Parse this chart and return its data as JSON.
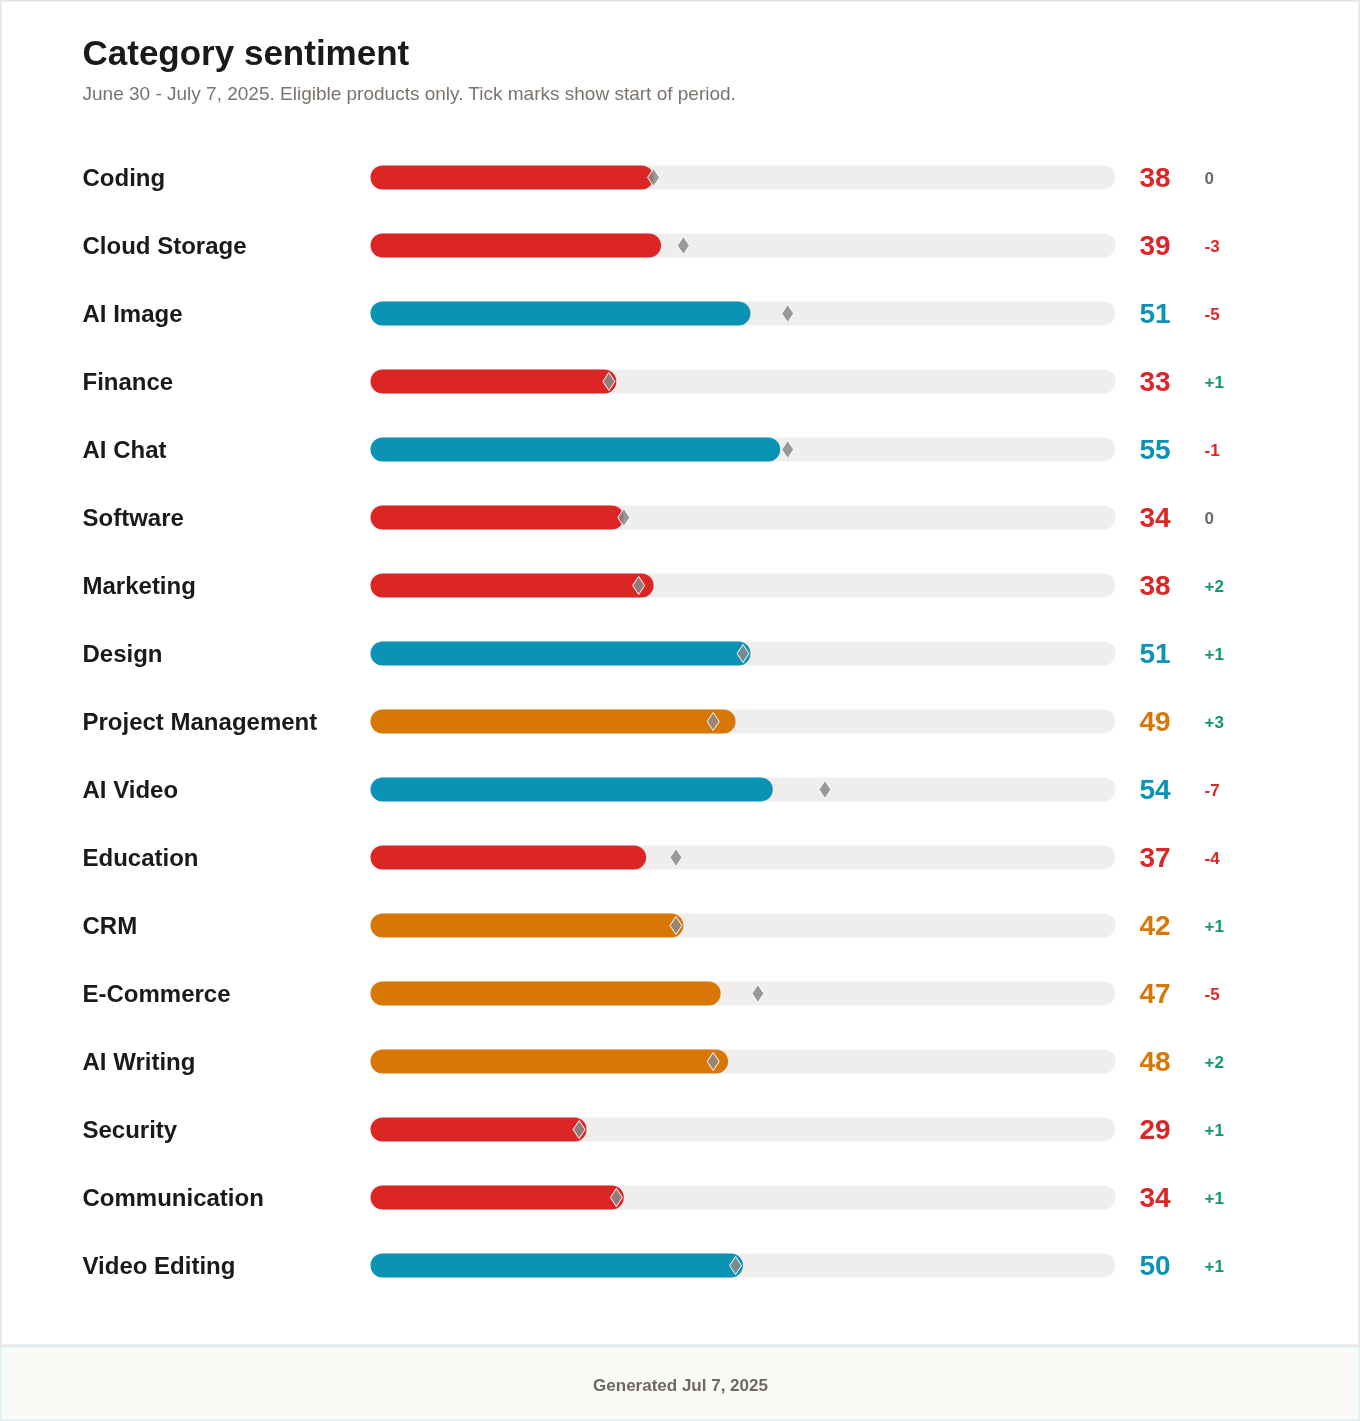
{
  "chart_data": {
    "type": "bar",
    "orientation": "horizontal",
    "title": "Category sentiment",
    "subtitle": "June 30 - July 7, 2025. Eligible products only. Tick marks show start of period.",
    "categories": [
      "Coding",
      "Cloud Storage",
      "AI Image",
      "Finance",
      "AI Chat",
      "Software",
      "Marketing",
      "Design",
      "Project Management",
      "AI Video",
      "Education",
      "CRM",
      "E-Commerce",
      "AI Writing",
      "Security",
      "Communication",
      "Video Editing"
    ],
    "xlim": [
      0,
      100
    ],
    "tick_labels": false,
    "series": [
      {
        "values": [
          38,
          39,
          51,
          33,
          55,
          34,
          38,
          51,
          49,
          54,
          37,
          42,
          47,
          48,
          29,
          34,
          50
        ],
        "value_labels": [
          "38",
          "39",
          "51",
          "33",
          "55",
          "34",
          "38",
          "51",
          "49",
          "54",
          "37",
          "42",
          "47",
          "48",
          "29",
          "34",
          "50"
        ],
        "colors": [
          "#dc2626",
          "#dc2626",
          "#0a93b5",
          "#dc2626",
          "#0a93b5",
          "#dc2626",
          "#dc2626",
          "#0a93b5",
          "#d97706",
          "#0a93b5",
          "#dc2626",
          "#d97706",
          "#d97706",
          "#d97706",
          "#dc2626",
          "#dc2626",
          "#0a93b5"
        ]
      },
      {
        "type": "scatter",
        "marker": "diamond",
        "color": "#8a8a8a",
        "values": [
          38,
          42,
          56,
          32,
          56,
          34,
          36,
          50,
          46,
          61,
          41,
          41,
          52,
          46,
          28,
          33,
          49
        ]
      }
    ],
    "annotations": [
      "0",
      "-3",
      "-5",
      "+1",
      "-1",
      "0",
      "+2",
      "+1",
      "+3",
      "-7",
      "-4",
      "+1",
      "-5",
      "+2",
      "+1",
      "+1",
      "+1",
      "Generated Jul 7, 2025"
    ]
  }
}
